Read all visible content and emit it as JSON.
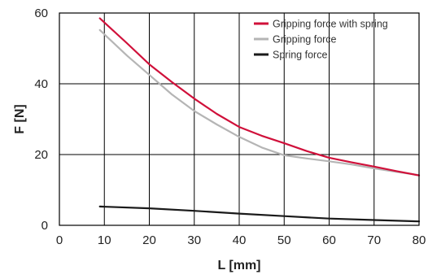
{
  "chart_data": {
    "type": "line",
    "xlabel": "L [mm]",
    "ylabel": "F [N]",
    "xlim": [
      0,
      80
    ],
    "ylim": [
      0,
      60
    ],
    "x_ticks": [
      0,
      10,
      20,
      30,
      40,
      50,
      60,
      70,
      80
    ],
    "y_ticks": [
      0,
      20,
      40,
      60
    ],
    "grid": true,
    "legend_position": "top-right",
    "series": [
      {
        "name": "Gripping force with  spring",
        "color": "#d0103a",
        "x": [
          9,
          15,
          20,
          25,
          30,
          35,
          40,
          45,
          50,
          55,
          60,
          65,
          70,
          75,
          80
        ],
        "y": [
          58.5,
          51.5,
          45.5,
          40.5,
          35.8,
          31.5,
          27.8,
          25.3,
          23.2,
          21,
          19.1,
          17.8,
          16.6,
          15.3,
          14.1
        ]
      },
      {
        "name": "Gripping force",
        "color": "#b5b5b5",
        "x": [
          9,
          15,
          20,
          25,
          30,
          35,
          40,
          45,
          50,
          55,
          60,
          65,
          70,
          75,
          80
        ],
        "y": [
          55.2,
          48,
          42.5,
          37,
          32.3,
          28.5,
          25,
          22,
          19.8,
          18.9,
          18.1,
          17.2,
          16.1,
          15.1,
          14.2
        ]
      },
      {
        "name": "Spring force",
        "color": "#1a1a1a",
        "x": [
          9,
          20,
          30,
          40,
          50,
          60,
          70,
          80
        ],
        "y": [
          5.3,
          4.8,
          4.1,
          3.3,
          2.6,
          1.9,
          1.5,
          1.1
        ]
      }
    ]
  }
}
